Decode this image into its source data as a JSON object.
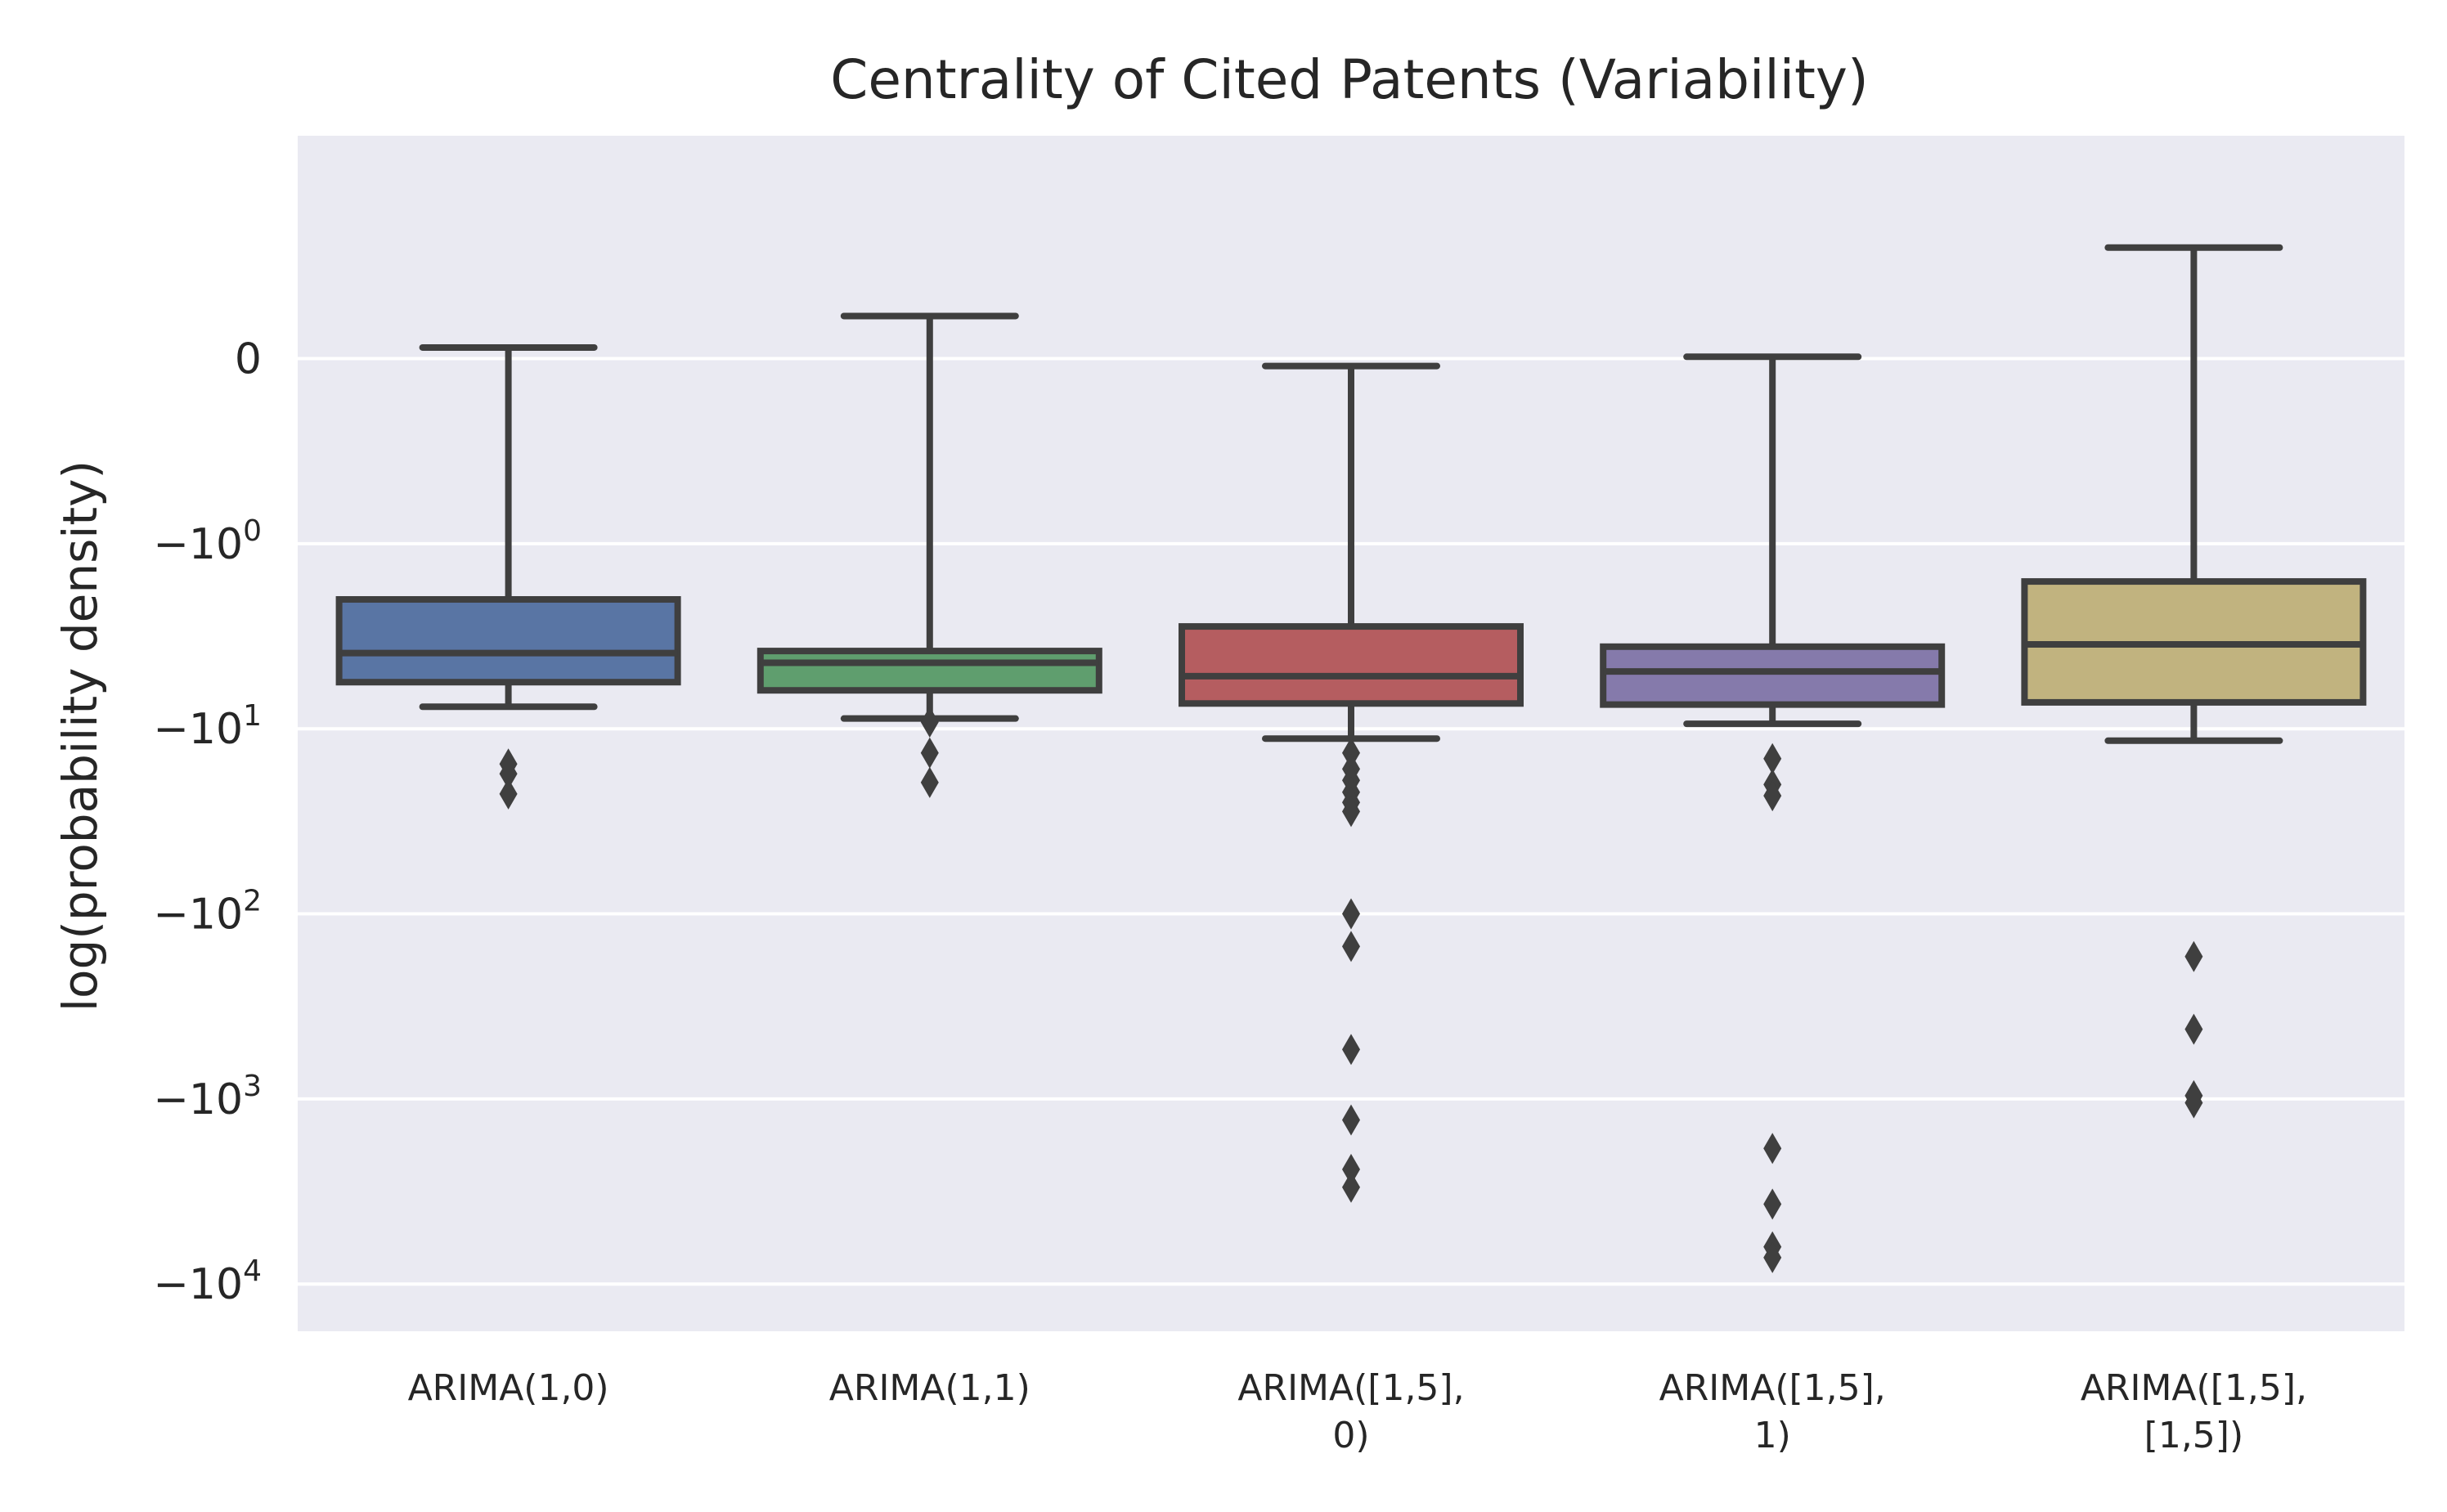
{
  "chart_data": {
    "type": "box",
    "title": "Centrality of Cited Patents (Variability)",
    "xlabel": "",
    "ylabel": "log(probability density)",
    "yscale": "symlog",
    "ylim": [
      -18000,
      1.6
    ],
    "grid": true,
    "yticks": [
      {
        "value": 0,
        "base": "0",
        "exp": ""
      },
      {
        "value": -1,
        "base": "−10",
        "exp": "0"
      },
      {
        "value": -10,
        "base": "−10",
        "exp": "1"
      },
      {
        "value": -100,
        "base": "−10",
        "exp": "2"
      },
      {
        "value": -1000,
        "base": "−10",
        "exp": "3"
      },
      {
        "value": -10000,
        "base": "−10",
        "exp": "4"
      }
    ],
    "categories": [
      [
        "ARIMA(1,0)"
      ],
      [
        "ARIMA(1,1)"
      ],
      [
        "ARIMA([1,5],",
        "0)"
      ],
      [
        "ARIMA([1,5],",
        "1)"
      ],
      [
        "ARIMA([1,5],",
        "[1,5])"
      ]
    ],
    "boxes": [
      {
        "whisker_high": 0.06,
        "q3": -2.0,
        "median": -3.9,
        "q1": -5.6,
        "whisker_low": -7.6,
        "color": "#5975a4",
        "outliers": [
          -15.5,
          -17.5,
          -22.5
        ]
      },
      {
        "whisker_high": 0.23,
        "q3": -3.8,
        "median": -4.4,
        "q1": -6.2,
        "whisker_low": -8.8,
        "color": "#5f9e6e",
        "outliers": [
          -9.2,
          -13.5,
          -19.5
        ]
      },
      {
        "whisker_high": -0.04,
        "q3": -2.8,
        "median": -5.2,
        "q1": -7.3,
        "whisker_low": -11.3,
        "color": "#b55d60",
        "outliers": [
          -13.5,
          -16.5,
          -19,
          -22,
          -25,
          -28,
          -100,
          -150,
          -540,
          -1300,
          -2400,
          -3000
        ]
      },
      {
        "whisker_high": 0.01,
        "q3": -3.6,
        "median": -4.9,
        "q1": -7.4,
        "whisker_low": -9.4,
        "color": "#857aab",
        "outliers": [
          -14.5,
          -20,
          -23,
          -1850,
          -3700,
          -6300,
          -7200
        ]
      },
      {
        "whisker_high": 0.6,
        "q3": -1.6,
        "median": -3.5,
        "q1": -7.2,
        "whisker_low": -11.6,
        "color": "#c1b37f",
        "outliers": [
          -170,
          -420,
          -960,
          -1050
        ]
      }
    ]
  }
}
